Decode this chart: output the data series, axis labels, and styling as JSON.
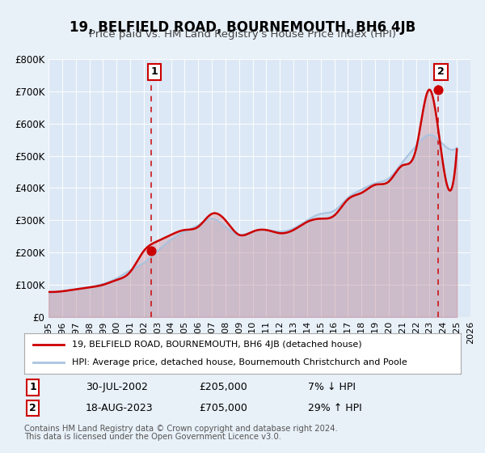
{
  "title": "19, BELFIELD ROAD, BOURNEMOUTH, BH6 4JB",
  "subtitle": "Price paid vs. HM Land Registry's House Price Index (HPI)",
  "bg_color": "#e8f0f8",
  "plot_bg_color": "#dce8f5",
  "legend_line1": "19, BELFIELD ROAD, BOURNEMOUTH, BH6 4JB (detached house)",
  "legend_line2": "HPI: Average price, detached house, Bournemouth Christchurch and Poole",
  "footer_line1": "Contains HM Land Registry data © Crown copyright and database right 2024.",
  "footer_line2": "This data is licensed under the Open Government Licence v3.0.",
  "sale1_date": "30-JUL-2002",
  "sale1_price": "£205,000",
  "sale1_hpi": "7% ↓ HPI",
  "sale2_date": "18-AUG-2023",
  "sale2_price": "£705,000",
  "sale2_hpi": "29% ↑ HPI",
  "xlim": [
    1995,
    2026
  ],
  "ylim": [
    0,
    800000
  ],
  "yticks": [
    0,
    100000,
    200000,
    300000,
    400000,
    500000,
    600000,
    700000,
    800000
  ],
  "ytick_labels": [
    "£0",
    "£100K",
    "£200K",
    "£300K",
    "£400K",
    "£500K",
    "£600K",
    "£700K",
    "£800K"
  ],
  "xticks": [
    1995,
    1996,
    1997,
    1998,
    1999,
    2000,
    2001,
    2002,
    2003,
    2004,
    2005,
    2006,
    2007,
    2008,
    2009,
    2010,
    2011,
    2012,
    2013,
    2014,
    2015,
    2016,
    2017,
    2018,
    2019,
    2020,
    2021,
    2022,
    2023,
    2024,
    2025,
    2026
  ],
  "hpi_color": "#aac4e0",
  "price_color": "#cc0000",
  "sale_marker_color": "#cc0000",
  "vline_color": "#cc0000",
  "annotation_box_color": "#cc0000",
  "hpi_years": [
    1995,
    1996,
    1997,
    1998,
    1999,
    2000,
    2001,
    2002,
    2003,
    2004,
    2005,
    2006,
    2007,
    2008,
    2009,
    2010,
    2011,
    2012,
    2013,
    2014,
    2015,
    2016,
    2017,
    2018,
    2019,
    2020,
    2021,
    2022,
    2023,
    2024,
    2025
  ],
  "hpi_values": [
    75000,
    80000,
    87000,
    93000,
    103000,
    120000,
    145000,
    168000,
    205000,
    240000,
    265000,
    285000,
    305000,
    280000,
    255000,
    265000,
    270000,
    265000,
    275000,
    300000,
    320000,
    330000,
    370000,
    395000,
    415000,
    430000,
    480000,
    530000,
    565000,
    535000,
    525000
  ],
  "price_years": [
    1995,
    1996,
    1997,
    1998,
    1999,
    2000,
    2001,
    2002,
    2003,
    2004,
    2005,
    2006,
    2007,
    2008,
    2009,
    2010,
    2011,
    2012,
    2013,
    2014,
    2015,
    2016,
    2017,
    2018,
    2019,
    2020,
    2021,
    2022,
    2023,
    2023.8,
    2025
  ],
  "price_values": [
    78000,
    80000,
    86000,
    92000,
    100000,
    115000,
    140000,
    205000,
    235000,
    255000,
    270000,
    280000,
    320000,
    300000,
    255000,
    265000,
    270000,
    260000,
    270000,
    295000,
    305000,
    315000,
    365000,
    385000,
    410000,
    420000,
    470000,
    520000,
    705000,
    530000,
    520000
  ],
  "sale1_x": 2002.57,
  "sale1_y": 205000,
  "sale2_x": 2023.63,
  "sale2_y": 705000
}
